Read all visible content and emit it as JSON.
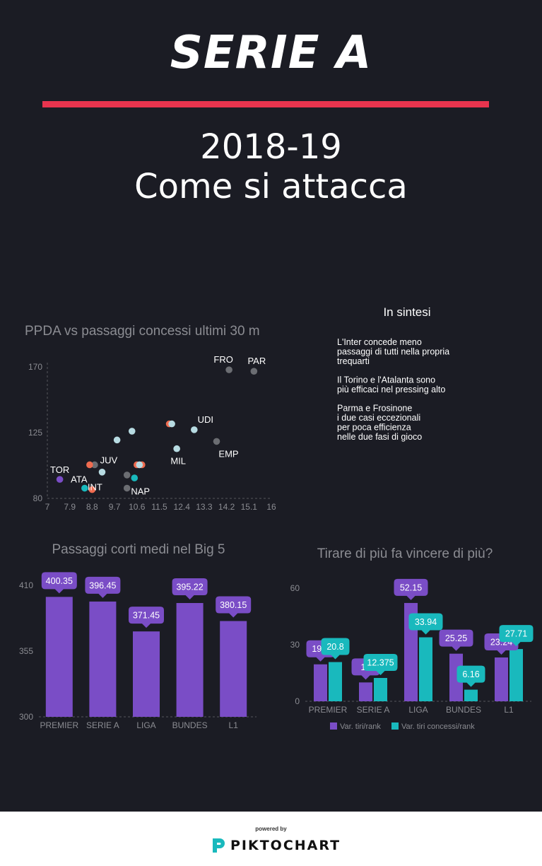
{
  "header": {
    "title": "SERIE A",
    "season": "2018-19",
    "headline": "Come si attacca"
  },
  "summary": {
    "title": "In sintesi",
    "paragraphs": [
      [
        "L'Inter concede meno",
        "passaggi di tutti nella propria",
        "trequarti"
      ],
      [
        "Il Torino e l'Atalanta sono",
        "più efficaci nel pressing alto"
      ],
      [
        "Parma e Frosinone",
        "i due casi eccezionali",
        "per poca efficienza",
        "nelle due fasi di gioco"
      ]
    ]
  },
  "colors": {
    "background": "#1b1c24",
    "accent": "#e8344e",
    "purple": "#7a4dc6",
    "teal": "#19b9bd",
    "orange": "#ef6b4f",
    "light_blue": "#b7dbe2",
    "gray": "#6b6d72"
  },
  "chart_data": [
    {
      "type": "scatter",
      "title": "PPDA vs passaggi concessi ultimi 30 m",
      "xlabel": "",
      "ylabel": "",
      "xlim": [
        7,
        16
      ],
      "ylim": [
        80,
        170
      ],
      "xticks": [
        "7",
        "7.9",
        "8.8",
        "9.7",
        "10.6",
        "11.5",
        "12.4",
        "13.3",
        "14.2",
        "15.1",
        "16"
      ],
      "yticks": [
        80,
        125,
        170
      ],
      "points": [
        {
          "x": 14.3,
          "y": 168,
          "label": "FRO",
          "color": "#6b6d72"
        },
        {
          "x": 15.3,
          "y": 167,
          "label": "PAR",
          "color": "#6b6d72"
        },
        {
          "x": 12.9,
          "y": 127,
          "label": "UDI",
          "color": "#b7dbe2"
        },
        {
          "x": 13.8,
          "y": 119,
          "label": "EMP",
          "color": "#6b6d72"
        },
        {
          "x": 12.2,
          "y": 114,
          "label": "MIL",
          "color": "#b7dbe2"
        },
        {
          "x": 11.9,
          "y": 131,
          "label": "",
          "color": "#ef6b4f"
        },
        {
          "x": 12.0,
          "y": 131,
          "label": "",
          "color": "#b7dbe2"
        },
        {
          "x": 10.4,
          "y": 126,
          "label": "",
          "color": "#b7dbe2"
        },
        {
          "x": 9.8,
          "y": 120,
          "label": "",
          "color": "#b7dbe2"
        },
        {
          "x": 8.9,
          "y": 103,
          "label": "JUV",
          "color": "#6b6d72"
        },
        {
          "x": 8.7,
          "y": 103,
          "label": "",
          "color": "#ef6b4f"
        },
        {
          "x": 9.2,
          "y": 98,
          "label": "",
          "color": "#b7dbe2"
        },
        {
          "x": 10.6,
          "y": 103,
          "label": "",
          "color": "#ef6b4f"
        },
        {
          "x": 10.8,
          "y": 103,
          "label": "",
          "color": "#ef6b4f"
        },
        {
          "x": 10.7,
          "y": 103,
          "label": "",
          "color": "#b7dbe2"
        },
        {
          "x": 10.2,
          "y": 96,
          "label": "",
          "color": "#6b6d72"
        },
        {
          "x": 10.5,
          "y": 94,
          "label": "",
          "color": "#19b9bd"
        },
        {
          "x": 7.5,
          "y": 93,
          "label": "TOR",
          "color": "#7a4dc6"
        },
        {
          "x": 8.5,
          "y": 87,
          "label": "ATA",
          "color": "#19b9bd"
        },
        {
          "x": 8.8,
          "y": 86,
          "label": "INT",
          "color": "#ef6b4f"
        },
        {
          "x": 10.2,
          "y": 87,
          "label": "NAP",
          "color": "#6b6d72"
        }
      ]
    },
    {
      "type": "bar",
      "title": "Passaggi corti medi nel Big 5",
      "categories": [
        "PREMIER",
        "SERIE A",
        "LIGA",
        "BUNDES",
        "L1"
      ],
      "values": [
        400.35,
        396.45,
        371.45,
        395.22,
        380.15
      ],
      "ylim": [
        300,
        410
      ],
      "yticks": [
        300,
        355,
        410
      ],
      "color": "#7a4dc6"
    },
    {
      "type": "bar",
      "title": "Tirare di più fa vincere di più?",
      "categories": [
        "PREMIER",
        "SERIE A",
        "LIGA",
        "BUNDES",
        "L1"
      ],
      "ylim": [
        0,
        60
      ],
      "yticks": [
        0,
        30,
        60
      ],
      "series": [
        {
          "name": "Var. tiri/rank",
          "color": "#7a4dc6",
          "values": [
            19.6,
            10,
            52.15,
            25.25,
            23.24
          ]
        },
        {
          "name": "Var. tiri concessi/rank",
          "color": "#19b9bd",
          "values": [
            20.8,
            12.375,
            33.94,
            6.16,
            27.71
          ]
        }
      ],
      "legend": "bottom"
    }
  ],
  "footer": {
    "powered_by": "powered by",
    "brand": "PIKTOCHART"
  }
}
